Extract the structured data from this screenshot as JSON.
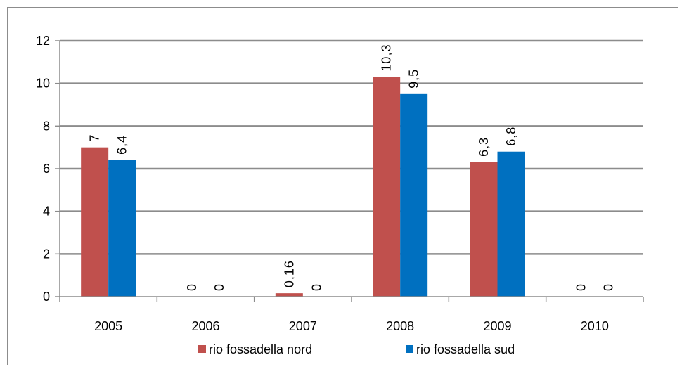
{
  "chart_data": {
    "type": "bar",
    "title": "",
    "xlabel": "",
    "ylabel": "",
    "categories": [
      "2005",
      "2006",
      "2007",
      "2008",
      "2009",
      "2010"
    ],
    "series": [
      {
        "name": "rio fossadella nord",
        "color": "#c0504d",
        "values": [
          7,
          0,
          0.16,
          10.3,
          6.3,
          0
        ],
        "labels": [
          "7",
          "0",
          "0,16",
          "10,3",
          "6,3",
          "0"
        ]
      },
      {
        "name": "rio fossadella sud",
        "color": "#0070c0",
        "values": [
          6.4,
          0,
          0,
          9.5,
          6.8,
          0
        ],
        "labels": [
          "6,4",
          "0",
          "0",
          "9,5",
          "6,8",
          "0"
        ]
      }
    ],
    "ylim": [
      0,
      12
    ],
    "yticks": [
      0,
      2,
      4,
      6,
      8,
      10,
      12
    ],
    "grid": true,
    "legend_position": "bottom"
  }
}
